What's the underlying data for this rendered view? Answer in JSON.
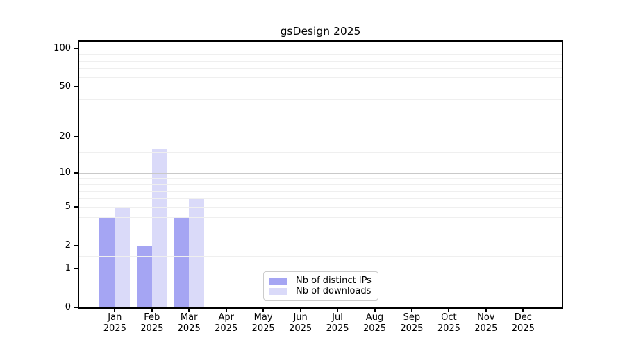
{
  "chart_data": {
    "type": "bar",
    "title": "gsDesign 2025",
    "x": {
      "months": [
        "Jan",
        "Feb",
        "Mar",
        "Apr",
        "May",
        "Jun",
        "Jul",
        "Aug",
        "Sep",
        "Oct",
        "Nov",
        "Dec"
      ],
      "year": "2025"
    },
    "series": [
      {
        "name": "Nb of distinct IPs",
        "color": "#a5a5f3",
        "values": [
          4,
          2,
          4,
          0,
          0,
          0,
          0,
          0,
          0,
          0,
          0,
          0
        ]
      },
      {
        "name": "Nb of downloads",
        "color": "#dadaf9",
        "values": [
          5,
          16,
          6,
          0,
          0,
          0,
          0,
          0,
          0,
          0,
          0,
          0
        ]
      }
    ],
    "y_axis": {
      "scale": "log1p",
      "max": 113,
      "tick_labels": [
        0,
        1,
        2,
        5,
        10,
        20,
        50,
        100
      ],
      "gridlines_major": [
        1,
        10,
        100
      ],
      "gridlines_minor": [
        0.5,
        1.5,
        2,
        3,
        4,
        5,
        6,
        7,
        8,
        9,
        15,
        20,
        30,
        40,
        50,
        60,
        70,
        80,
        90
      ]
    },
    "legend": {
      "position": "lower-center"
    },
    "grid": true,
    "colors": {
      "grid_minor": "#efefef",
      "grid_major": "#c9c9c9",
      "axis": "#000000",
      "legend_border": "#cccccc",
      "background": "#ffffff"
    }
  }
}
